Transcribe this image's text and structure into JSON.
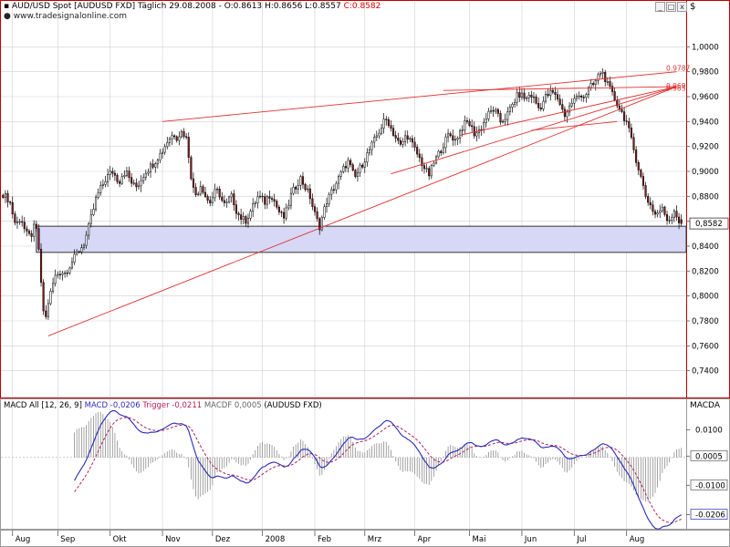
{
  "colors": {
    "bull": "#ffffff",
    "bear": "#8b1a1a",
    "wick": "#000000",
    "trend": "#e03030",
    "zone_fill": "#d6d8f6",
    "zone_stroke": "#333333",
    "macd": "#2a2ab8",
    "trigger": "#b0205a",
    "hist": "#8c8c8c",
    "grid": "#cfcfcf",
    "frame_red": "#c00000"
  },
  "header": {
    "title_line": "AUD/USD Spot [AUDUSD FXD]  Täglich 29.08.2008 - O:0.8613 H:0.8656 L:0.8557",
    "close_label": "C:0.8582",
    "website": "www.tradesignalonline.com",
    "currency_symbol": "$",
    "window_controls": [
      "_",
      "□",
      "x"
    ]
  },
  "chart_data": {
    "type": "candlestick",
    "title": "AUD/USD Spot [AUDUSD FXD]",
    "interval": "Täglich",
    "last_bar": {
      "date": "29.08.2008",
      "open": 0.8613,
      "high": 0.8656,
      "low": 0.8557,
      "close": 0.8582
    },
    "price_ticks": [
      "1,0000",
      "0,9800",
      "0,9600",
      "0,9400",
      "0,9200",
      "0,9000",
      "0,8800",
      "0,8600",
      "0,8400",
      "0,8200",
      "0,8000",
      "0,7800",
      "0,7600",
      "0,7400"
    ],
    "ylim": [
      0.72,
      1.02
    ],
    "x_months": [
      "Aug",
      "Sep",
      "Okt",
      "Nov",
      "Dez",
      "2008",
      "Feb",
      "Mrz",
      "Apr",
      "Mai",
      "Jun",
      "Jul",
      "Aug"
    ],
    "month_start_bar": [
      4,
      23,
      45,
      67,
      88,
      109,
      131,
      152,
      173,
      196,
      218,
      240,
      262
    ],
    "bars_total": 286,
    "closes": [
      0.882,
      0.879,
      0.877,
      0.866,
      0.856,
      0.862,
      0.86,
      0.85,
      0.848,
      0.85,
      0.858,
      0.84,
      0.8,
      0.778,
      0.795,
      0.805,
      0.815,
      0.818,
      0.82,
      0.818,
      0.822,
      0.826,
      0.83,
      0.835,
      0.838,
      0.842,
      0.85,
      0.86,
      0.87,
      0.88,
      0.885,
      0.89,
      0.895,
      0.898,
      0.9,
      0.895,
      0.892,
      0.898,
      0.9,
      0.895,
      0.89,
      0.887,
      0.89,
      0.895,
      0.9,
      0.902,
      0.905,
      0.908,
      0.912,
      0.915,
      0.92,
      0.925,
      0.928,
      0.93,
      0.927,
      0.932,
      0.93,
      0.925,
      0.9,
      0.885,
      0.88,
      0.89,
      0.885,
      0.878,
      0.875,
      0.88,
      0.885,
      0.882,
      0.875,
      0.872,
      0.878,
      0.88,
      0.87,
      0.865,
      0.862,
      0.86,
      0.865,
      0.87,
      0.875,
      0.88,
      0.878,
      0.875,
      0.88,
      0.882,
      0.876,
      0.87,
      0.865,
      0.863,
      0.87,
      0.88,
      0.885,
      0.89,
      0.895,
      0.89,
      0.885,
      0.88,
      0.87,
      0.862,
      0.856,
      0.865,
      0.875,
      0.88,
      0.885,
      0.89,
      0.895,
      0.9,
      0.905,
      0.908,
      0.9,
      0.895,
      0.9,
      0.905,
      0.91,
      0.915,
      0.92,
      0.925,
      0.93,
      0.935,
      0.94,
      0.942,
      0.935,
      0.93,
      0.925,
      0.92,
      0.925,
      0.93,
      0.925,
      0.92,
      0.915,
      0.91,
      0.905,
      0.9,
      0.897,
      0.905,
      0.91,
      0.915,
      0.92,
      0.925,
      0.93,
      0.928,
      0.925,
      0.93,
      0.935,
      0.938,
      0.94,
      0.935,
      0.93,
      0.932,
      0.935,
      0.94,
      0.945,
      0.948,
      0.95,
      0.945,
      0.94,
      0.942,
      0.945,
      0.95,
      0.955,
      0.96,
      0.962,
      0.96,
      0.958,
      0.962,
      0.96,
      0.955,
      0.95,
      0.955,
      0.96,
      0.962,
      0.964,
      0.96,
      0.958,
      0.95,
      0.945,
      0.95,
      0.955,
      0.958,
      0.96,
      0.962,
      0.96,
      0.965,
      0.968,
      0.97,
      0.975,
      0.98,
      0.978,
      0.97,
      0.965,
      0.96,
      0.955,
      0.95,
      0.945,
      0.94,
      0.93,
      0.92,
      0.91,
      0.9,
      0.89,
      0.88,
      0.875,
      0.87,
      0.865,
      0.868,
      0.87,
      0.865,
      0.86,
      0.865,
      0.87,
      0.86,
      0.8582
    ],
    "trendlines": [
      {
        "from": {
          "bar": 19,
          "price": 0.768
        },
        "to": {
          "bar": 283,
          "price": 0.968
        }
      },
      {
        "from": {
          "bar": 67,
          "price": 0.94
        },
        "to": {
          "bar": 283,
          "price": 0.98
        }
      },
      {
        "from": {
          "bar": 163,
          "price": 0.898
        },
        "to": {
          "bar": 283,
          "price": 0.968
        }
      },
      {
        "from": {
          "bar": 192,
          "price": 0.929
        },
        "to": {
          "bar": 283,
          "price": 0.968
        }
      },
      {
        "from": {
          "bar": 185,
          "price": 0.965
        },
        "to": {
          "bar": 283,
          "price": 0.968
        }
      },
      {
        "from": {
          "bar": 222,
          "price": 0.933
        },
        "to": {
          "bar": 258,
          "price": 0.94
        }
      }
    ],
    "price_labels": [
      {
        "text": "0.9787",
        "price": 0.98
      },
      {
        "text": "0.969",
        "price": 0.966
      },
      {
        "text": "0.965",
        "price": 0.964
      }
    ],
    "support_zone": {
      "from_bar": 14,
      "upper": 0.856,
      "lower": 0.835
    },
    "last_price_label": "0,8582",
    "macd": {
      "panel_title": "MACD All [12, 26, 9]",
      "macd_label": "MACD -0,0206",
      "trigger_label": "Trigger -0,0211",
      "macdf_label": "MACDF 0,0005",
      "symbol_label": "(AUDUSD FXD)",
      "axis_title": "MACDA",
      "ticks": [
        "0.0100",
        "0.0005",
        "-0.0100",
        "-0.0206"
      ],
      "ylim": [
        -0.025,
        0.017
      ],
      "tick_values": [
        0.01,
        0.0005,
        -0.01,
        -0.0206
      ]
    }
  }
}
